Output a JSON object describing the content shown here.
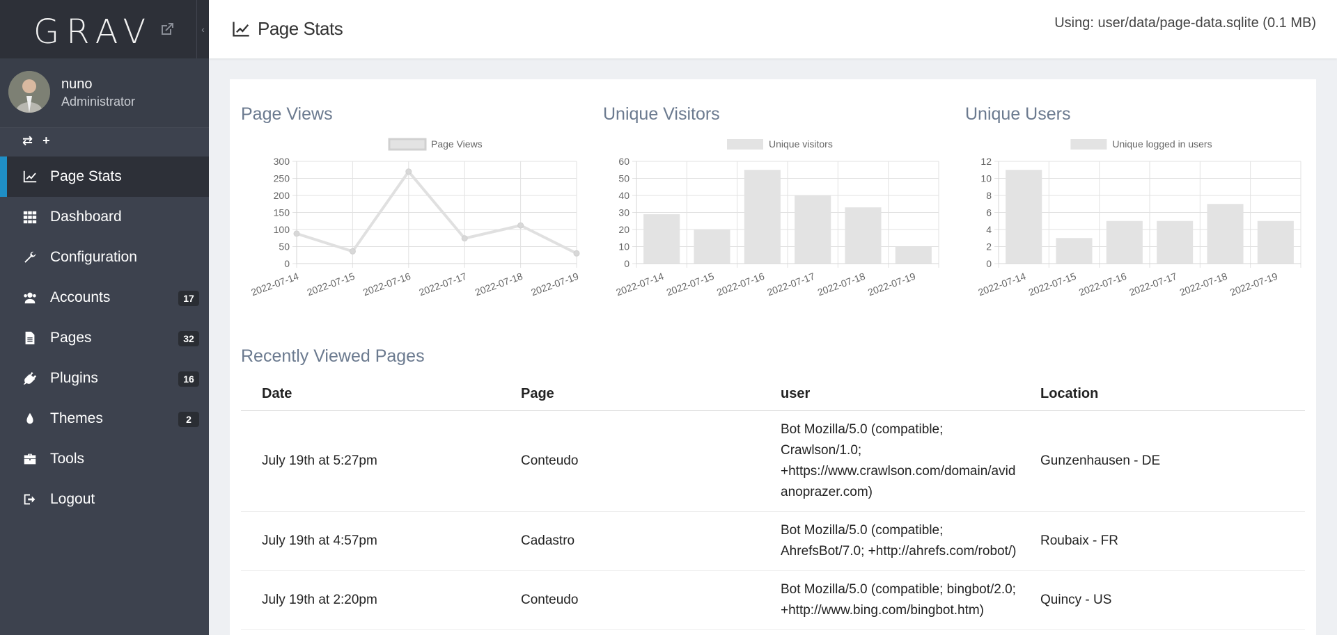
{
  "sidebar": {
    "logo": "GRAV",
    "user": {
      "name": "nuno",
      "role": "Administrator"
    },
    "quick_actions": [
      "⇄",
      "+"
    ],
    "items": [
      {
        "label": "Page Stats",
        "icon": "line-chart-icon",
        "active": true
      },
      {
        "label": "Dashboard",
        "icon": "grid-icon"
      },
      {
        "label": "Configuration",
        "icon": "wrench-icon"
      },
      {
        "label": "Accounts",
        "icon": "users-icon",
        "badge": "17"
      },
      {
        "label": "Pages",
        "icon": "file-icon",
        "badge": "32"
      },
      {
        "label": "Plugins",
        "icon": "plug-icon",
        "badge": "16"
      },
      {
        "label": "Themes",
        "icon": "tint-icon",
        "badge": "2"
      },
      {
        "label": "Tools",
        "icon": "briefcase-icon"
      },
      {
        "label": "Logout",
        "icon": "sign-out-icon"
      }
    ]
  },
  "header": {
    "title": "Page Stats",
    "db_info": "Using: user/data/page-data.sqlite (0.1 MB)"
  },
  "chart_data": [
    {
      "type": "line",
      "title": "Page Views",
      "legend": "Page Views",
      "categories": [
        "2022-07-14",
        "2022-07-15",
        "2022-07-16",
        "2022-07-17",
        "2022-07-18",
        "2022-07-19"
      ],
      "values": [
        88,
        36,
        270,
        74,
        112,
        30
      ],
      "ylim": [
        0,
        300
      ],
      "yticks": [
        0,
        50,
        100,
        150,
        200,
        250,
        300
      ]
    },
    {
      "type": "bar",
      "title": "Unique Visitors",
      "legend": "Unique visitors",
      "categories": [
        "2022-07-14",
        "2022-07-15",
        "2022-07-16",
        "2022-07-17",
        "2022-07-18",
        "2022-07-19"
      ],
      "values": [
        29,
        20,
        55,
        40,
        33,
        10
      ],
      "ylim": [
        0,
        60
      ],
      "yticks": [
        0,
        10,
        20,
        30,
        40,
        50,
        60
      ]
    },
    {
      "type": "bar",
      "title": "Unique Users",
      "legend": "Unique logged in users",
      "categories": [
        "2022-07-14",
        "2022-07-15",
        "2022-07-16",
        "2022-07-17",
        "2022-07-18",
        "2022-07-19"
      ],
      "values": [
        11,
        3,
        5,
        5,
        7,
        5
      ],
      "ylim": [
        0,
        12
      ],
      "yticks": [
        0,
        2,
        4,
        6,
        8,
        10,
        12
      ]
    }
  ],
  "recent": {
    "title": "Recently Viewed Pages",
    "columns": [
      "Date",
      "Page",
      "user",
      "Location"
    ],
    "rows": [
      {
        "date": "July 19th at 5:27pm",
        "page": "Conteudo",
        "user": "Bot Mozilla/5.0 (compatible; Crawlson/1.0; +https://www.crawlson.com/domain/avidanoprazer.com)",
        "location": "Gunzenhausen - DE"
      },
      {
        "date": "July 19th at 4:57pm",
        "page": "Cadastro",
        "user": "Bot Mozilla/5.0 (compatible; AhrefsBot/7.0; +http://ahrefs.com/robot/)",
        "location": "Roubaix - FR"
      },
      {
        "date": "July 19th at 2:20pm",
        "page": "Conteudo",
        "user": "Bot Mozilla/5.0 (compatible; bingbot/2.0; +http://www.bing.com/bingbot.htm)",
        "location": "Quincy - US"
      }
    ]
  }
}
